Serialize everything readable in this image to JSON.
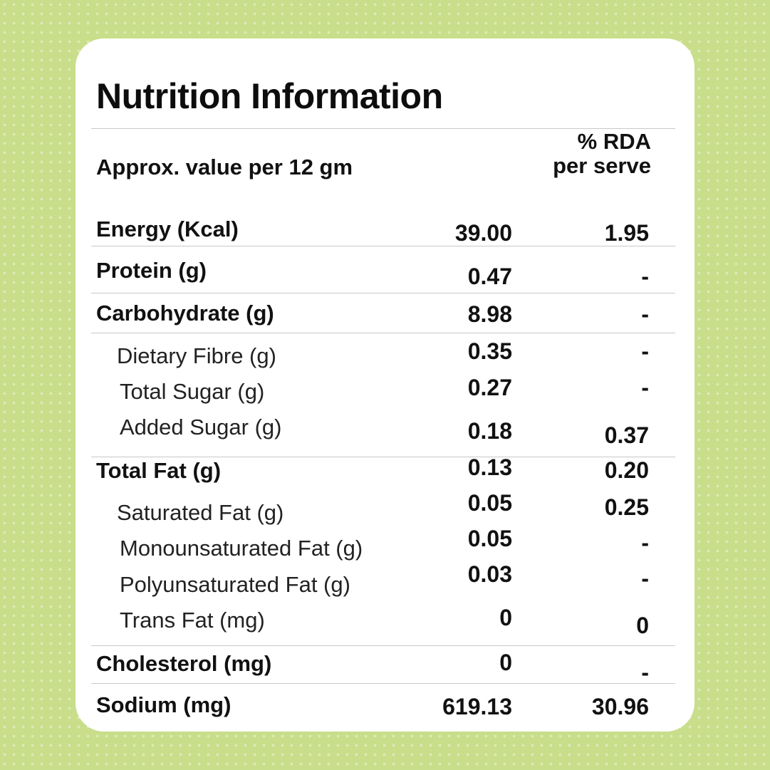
{
  "title": "Nutrition Information",
  "header": {
    "serving_label": "Approx. value per 12 gm",
    "rda_line1": "% RDA",
    "rda_line2": "per serve"
  },
  "rows": [
    {
      "label": "Energy (Kcal)",
      "value": "39.00",
      "rda": "1.95"
    },
    {
      "label": "Protein (g)",
      "value": "0.47",
      "rda": "-"
    },
    {
      "label": "Carbohydrate (g)",
      "value": "8.98",
      "rda": "-"
    },
    {
      "label": "Dietary Fibre (g)",
      "value": "0.35",
      "rda": "-"
    },
    {
      "label": "Total Sugar (g)",
      "value": "0.27",
      "rda": "-"
    },
    {
      "label": "Added Sugar (g)",
      "value": "0.18",
      "rda": "0.37"
    },
    {
      "label": "Total Fat (g)",
      "value": "0.13",
      "rda": "0.20"
    },
    {
      "label": "Saturated Fat (g)",
      "value": "0.05",
      "rda": "0.25"
    },
    {
      "label": "Monounsaturated Fat (g)",
      "value": "0.05",
      "rda": "-"
    },
    {
      "label": "Polyunsaturated Fat (g)",
      "value": "0.03",
      "rda": "-"
    },
    {
      "label": "Trans Fat (mg)",
      "value": "0",
      "rda": "0"
    },
    {
      "label": "Cholesterol (mg)",
      "value": "0",
      "rda": "-"
    },
    {
      "label": "Sodium (mg)",
      "value": "619.13",
      "rda": "30.96"
    }
  ],
  "colors": {
    "background": "#c8de8a",
    "card": "#ffffff",
    "text": "#111111",
    "divider": "#c9c9c9"
  }
}
